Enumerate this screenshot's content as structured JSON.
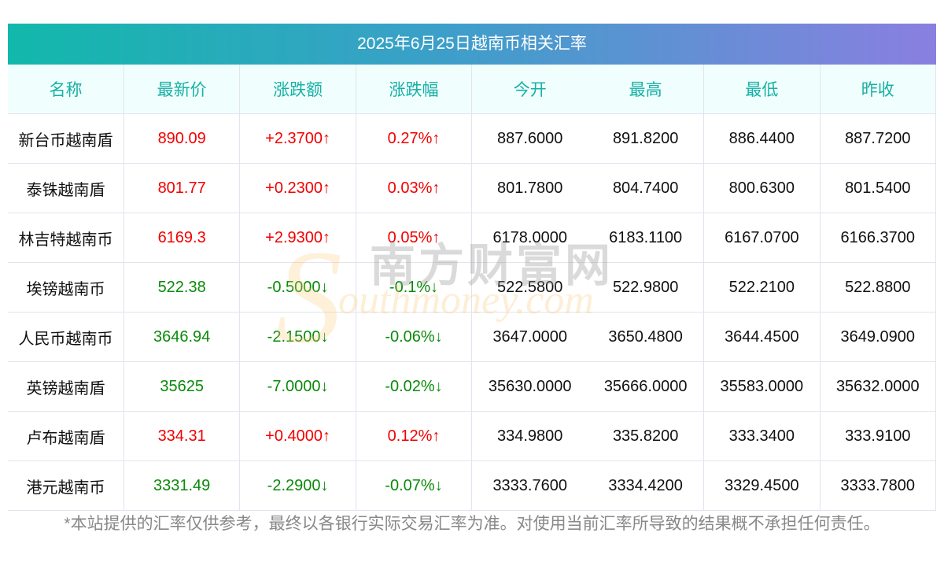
{
  "title": "2025年6月25日越南币相关汇率",
  "columns": [
    "名称",
    "最新价",
    "涨跌额",
    "涨跌幅",
    "今开",
    "最高",
    "最低",
    "昨收"
  ],
  "rows": [
    {
      "name": "新台币越南盾",
      "price": "890.09",
      "change": "+2.3700↑",
      "pct": "0.27%↑",
      "open": "887.6000",
      "high": "891.8200",
      "low": "886.4400",
      "prev": "887.7200",
      "dir": "up"
    },
    {
      "name": "泰铢越南盾",
      "price": "801.77",
      "change": "+0.2300↑",
      "pct": "0.03%↑",
      "open": "801.7800",
      "high": "804.7400",
      "low": "800.6300",
      "prev": "801.5400",
      "dir": "up"
    },
    {
      "name": "林吉特越南币",
      "price": "6169.3",
      "change": "+2.9300↑",
      "pct": "0.05%↑",
      "open": "6178.0000",
      "high": "6183.1100",
      "low": "6167.0700",
      "prev": "6166.3700",
      "dir": "up"
    },
    {
      "name": "埃镑越南币",
      "price": "522.38",
      "change": "-0.5000↓",
      "pct": "-0.1%↓",
      "open": "522.5800",
      "high": "522.9800",
      "low": "522.2100",
      "prev": "522.8800",
      "dir": "down"
    },
    {
      "name": "人民币越南币",
      "price": "3646.94",
      "change": "-2.1500↓",
      "pct": "-0.06%↓",
      "open": "3647.0000",
      "high": "3650.4800",
      "low": "3644.4500",
      "prev": "3649.0900",
      "dir": "down"
    },
    {
      "name": "英镑越南盾",
      "price": "35625",
      "change": "-7.0000↓",
      "pct": "-0.02%↓",
      "open": "35630.0000",
      "high": "35666.0000",
      "low": "35583.0000",
      "prev": "35632.0000",
      "dir": "down"
    },
    {
      "name": "卢布越南盾",
      "price": "334.31",
      "change": "+0.4000↑",
      "pct": "0.12%↑",
      "open": "334.9800",
      "high": "335.8200",
      "low": "333.3400",
      "prev": "333.9100",
      "dir": "up"
    },
    {
      "name": "港元越南币",
      "price": "3331.49",
      "change": "-2.2900↓",
      "pct": "-0.07%↓",
      "open": "3333.7600",
      "high": "3334.4200",
      "low": "3329.4500",
      "prev": "3333.7800",
      "dir": "down"
    }
  ],
  "disclaimer": "*本站提供的汇率仅供参考，最终以各银行实际交易汇率为准。对使用当前汇率所导致的结果概不承担任何责任。",
  "watermark": {
    "cn": "南方财富网",
    "en": "outhmoney.com",
    "s": "S"
  },
  "colors": {
    "up": "#f20000",
    "down": "#0a8a0a",
    "header_text": "#17b0a5"
  }
}
